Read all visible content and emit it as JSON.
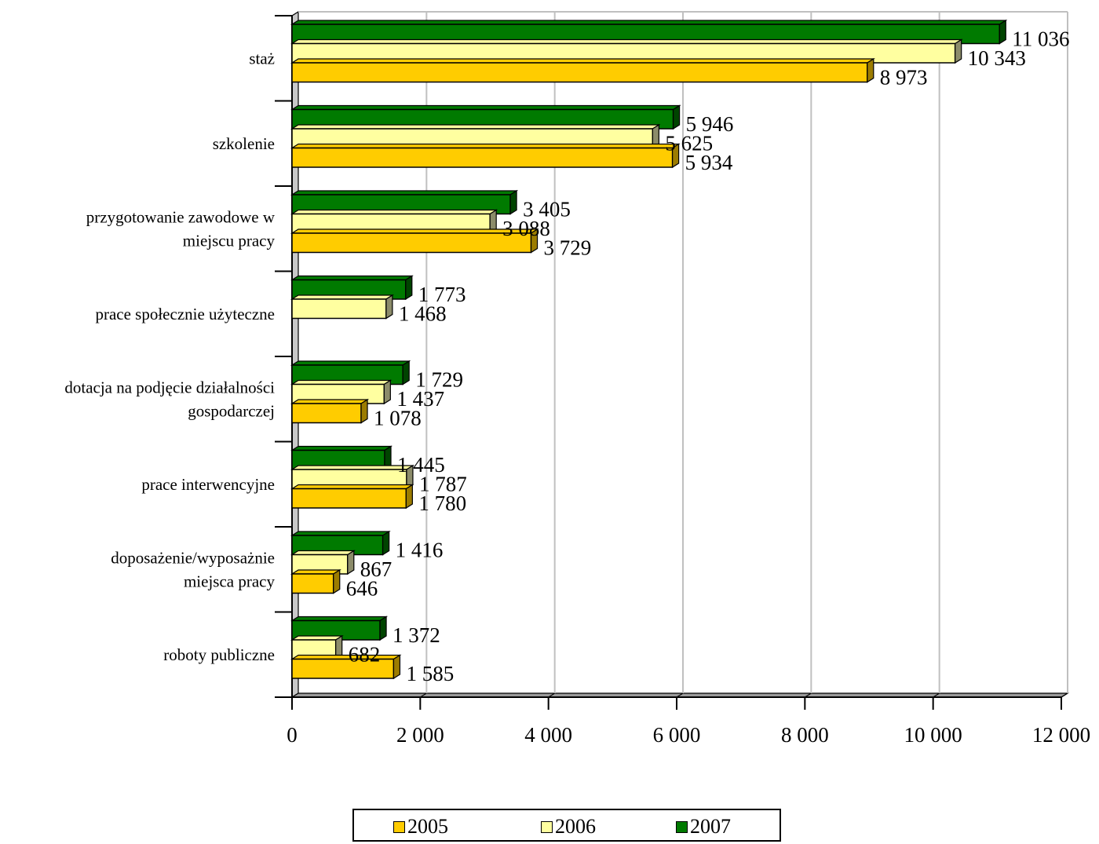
{
  "chart_data": {
    "type": "bar",
    "orientation": "horizontal",
    "categories": [
      [
        "staż"
      ],
      [
        "szkolenie"
      ],
      [
        "przygotowanie zawodowe w",
        "miejscu pracy"
      ],
      [
        "prace społecznie użyteczne"
      ],
      [
        "dotacja na podjęcie działalności",
        "gospodarczej"
      ],
      [
        "prace interwencyjne"
      ],
      [
        "doposażenie/wyposażnie",
        "miejsca pracy"
      ],
      [
        "roboty publiczne"
      ]
    ],
    "series": [
      {
        "name": "2005",
        "color": "#FFCC00",
        "side_color": "#9C7C00",
        "values": [
          8973,
          5934,
          3729,
          null,
          1078,
          1780,
          646,
          1585
        ],
        "labels": [
          "8 973",
          "5 934",
          "3 729",
          "",
          "1 078",
          "1 780",
          "646",
          "1 585"
        ]
      },
      {
        "name": "2006",
        "color": "#FFFFA0",
        "side_color": "#8C8C6A",
        "values": [
          10343,
          5625,
          3088,
          1468,
          1437,
          1787,
          867,
          682
        ],
        "labels": [
          "10 343",
          "5 625",
          "3 088",
          "1 468",
          "1 437",
          "1 787",
          "867",
          "682"
        ]
      },
      {
        "name": "2007",
        "color": "#007A00",
        "side_color": "#004400",
        "values": [
          11036,
          5946,
          3405,
          1773,
          1729,
          1445,
          1416,
          1372
        ],
        "labels": [
          "11 036",
          "5 946",
          "3 405",
          "1 773",
          "1 729",
          "1 445",
          "1 416",
          "1 372"
        ]
      }
    ],
    "xlim": [
      0,
      12000
    ],
    "xticks": [
      0,
      2000,
      4000,
      6000,
      8000,
      10000,
      12000
    ],
    "xtick_labels": [
      "0",
      "2 000",
      "4 000",
      "6 000",
      "8 000",
      "10 000",
      "12 000"
    ],
    "grid": true,
    "legend_position": "bottom"
  }
}
